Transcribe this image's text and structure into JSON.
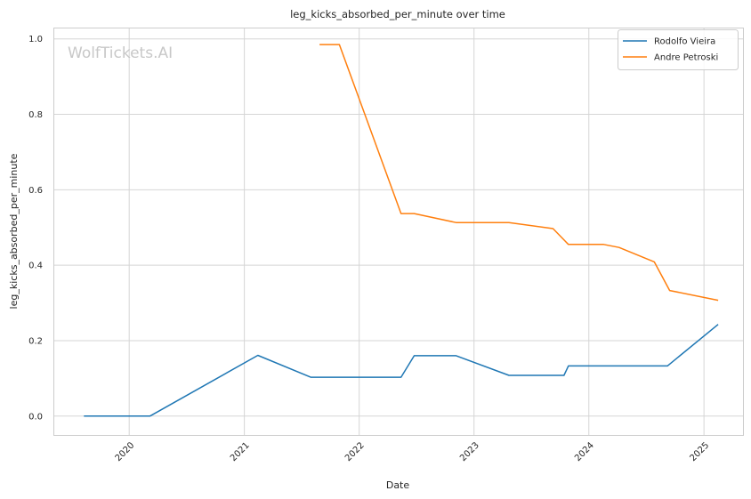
{
  "chart_data": {
    "type": "line",
    "title": "leg_kicks_absorbed_per_minute over time",
    "xlabel": "Date",
    "ylabel": "leg_kicks_absorbed_per_minute",
    "watermark": "WolfTickets.AI",
    "x_ticks": [
      "2020",
      "2021",
      "2022",
      "2023",
      "2024",
      "2025"
    ],
    "y_ticks": [
      "0.0",
      "0.2",
      "0.4",
      "0.6",
      "0.8",
      "1.0"
    ],
    "xlim": [
      "2019-05-05",
      "2025-05-05"
    ],
    "ylim": [
      -0.05,
      1.03
    ],
    "grid": true,
    "legend_position": "top-right",
    "series": [
      {
        "name": "Rodolfo Vieira",
        "color": "#1f77b4",
        "points": [
          [
            "2019-08-10",
            0.0
          ],
          [
            "2020-03-07",
            0.0
          ],
          [
            "2021-02-13",
            0.161
          ],
          [
            "2021-07-31",
            0.103
          ],
          [
            "2022-05-14",
            0.103
          ],
          [
            "2022-06-25",
            0.16
          ],
          [
            "2022-11-05",
            0.16
          ],
          [
            "2023-04-22",
            0.108
          ],
          [
            "2023-10-14",
            0.108
          ],
          [
            "2023-10-28",
            0.133
          ],
          [
            "2024-09-07",
            0.133
          ],
          [
            "2025-02-15",
            0.243
          ]
        ]
      },
      {
        "name": "Andre Petroski",
        "color": "#ff7f0e",
        "points": [
          [
            "2021-08-28",
            0.985
          ],
          [
            "2021-10-30",
            0.985
          ],
          [
            "2022-05-14",
            0.537
          ],
          [
            "2022-06-25",
            0.537
          ],
          [
            "2022-11-05",
            0.513
          ],
          [
            "2023-04-22",
            0.513
          ],
          [
            "2023-09-09",
            0.497
          ],
          [
            "2023-10-28",
            0.455
          ],
          [
            "2024-02-17",
            0.455
          ],
          [
            "2024-04-06",
            0.447
          ],
          [
            "2024-07-27",
            0.409
          ],
          [
            "2024-09-14",
            0.333
          ],
          [
            "2025-02-15",
            0.307
          ]
        ]
      }
    ]
  }
}
